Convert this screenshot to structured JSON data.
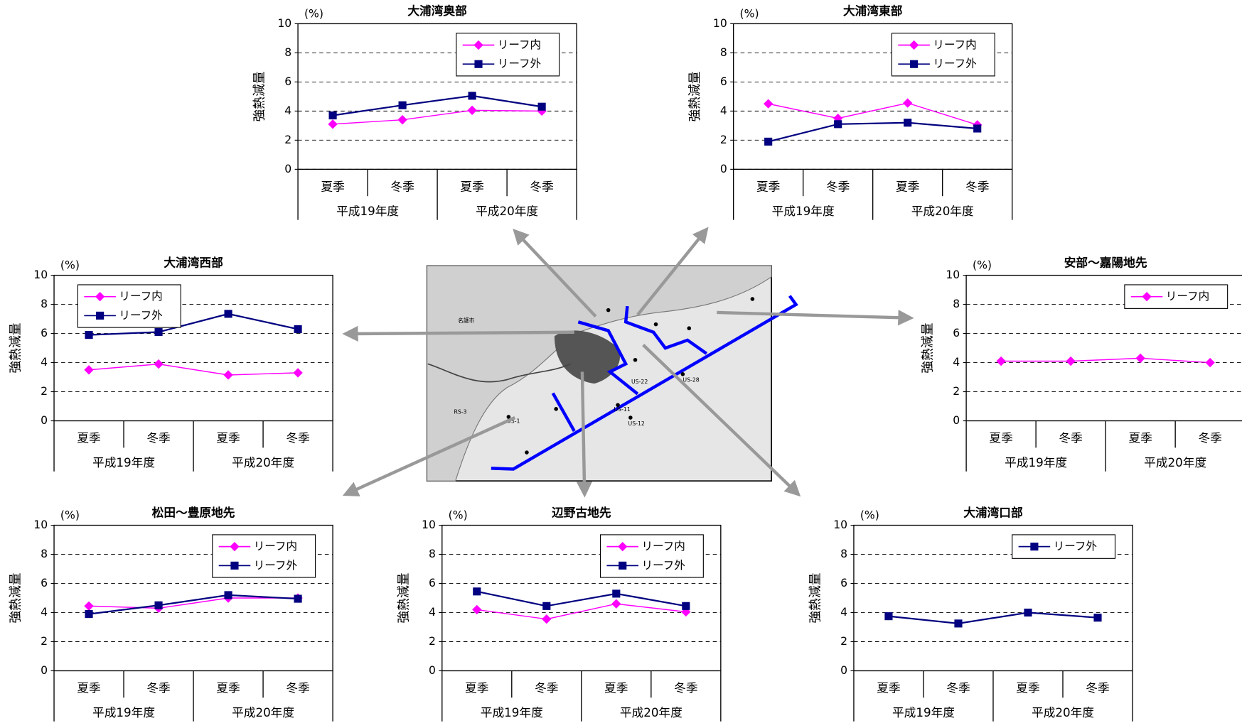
{
  "chart_data": [
    {
      "type": "line",
      "title": "大浦湾奥部",
      "y_label": "強熱減量",
      "y_unit": "(%)",
      "categories": [
        "夏季",
        "冬季",
        "夏季",
        "冬季"
      ],
      "groups": [
        "平成19年度",
        "平成20年度"
      ],
      "ylim": [
        0,
        10
      ],
      "yticks": [
        0,
        2,
        4,
        6,
        8,
        10
      ],
      "grid": true,
      "legend": "upper right",
      "series": [
        {
          "name": "リーフ内",
          "color": "#ff00ff",
          "marker": "diamond",
          "values": [
            3.1,
            3.4,
            4.05,
            4.0
          ]
        },
        {
          "name": "リーフ外",
          "color": "#000080",
          "marker": "square",
          "values": [
            3.7,
            4.4,
            5.05,
            4.3
          ]
        }
      ]
    },
    {
      "type": "line",
      "title": "大浦湾東部",
      "y_label": "強熱減量",
      "y_unit": "(%)",
      "categories": [
        "夏季",
        "冬季",
        "夏季",
        "冬季"
      ],
      "groups": [
        "平成19年度",
        "平成20年度"
      ],
      "ylim": [
        0,
        10
      ],
      "yticks": [
        0,
        2,
        4,
        6,
        8,
        10
      ],
      "grid": true,
      "legend": "upper right",
      "series": [
        {
          "name": "リーフ内",
          "color": "#ff00ff",
          "marker": "diamond",
          "values": [
            4.5,
            3.5,
            4.55,
            3.05
          ]
        },
        {
          "name": "リーフ外",
          "color": "#000080",
          "marker": "square",
          "values": [
            1.9,
            3.1,
            3.2,
            2.8
          ]
        }
      ]
    },
    {
      "type": "line",
      "title": "大浦湾西部",
      "y_label": "強熱減量",
      "y_unit": "(%)",
      "categories": [
        "夏季",
        "冬季",
        "夏季",
        "冬季"
      ],
      "groups": [
        "平成19年度",
        "平成20年度"
      ],
      "ylim": [
        0,
        10
      ],
      "yticks": [
        0,
        2,
        4,
        6,
        8,
        10
      ],
      "grid": true,
      "legend": "upper left",
      "series": [
        {
          "name": "リーフ内",
          "color": "#ff00ff",
          "marker": "diamond",
          "values": [
            3.5,
            3.9,
            3.15,
            3.3
          ]
        },
        {
          "name": "リーフ外",
          "color": "#000080",
          "marker": "square",
          "values": [
            5.9,
            6.1,
            7.35,
            6.3
          ]
        }
      ]
    },
    {
      "type": "line",
      "title": "安部～嘉陽地先",
      "y_label": "強熱減量",
      "y_unit": "(%)",
      "categories": [
        "夏季",
        "冬季",
        "夏季",
        "冬季"
      ],
      "groups": [
        "平成19年度",
        "平成20年度"
      ],
      "ylim": [
        0,
        10
      ],
      "yticks": [
        0,
        2,
        4,
        6,
        8,
        10
      ],
      "grid": true,
      "legend": "upper right",
      "series": [
        {
          "name": "リーフ内",
          "color": "#ff00ff",
          "marker": "diamond",
          "values": [
            4.1,
            4.1,
            4.3,
            4.0
          ]
        }
      ]
    },
    {
      "type": "line",
      "title": "松田～豊原地先",
      "y_label": "強熱減量",
      "y_unit": "(%)",
      "categories": [
        "夏季",
        "冬季",
        "夏季",
        "冬季"
      ],
      "groups": [
        "平成19年度",
        "平成20年度"
      ],
      "ylim": [
        0,
        10
      ],
      "yticks": [
        0,
        2,
        4,
        6,
        8,
        10
      ],
      "grid": true,
      "legend": "upper right",
      "series": [
        {
          "name": "リーフ内",
          "color": "#ff00ff",
          "marker": "diamond",
          "values": [
            4.45,
            4.3,
            5.0,
            5.0
          ]
        },
        {
          "name": "リーフ外",
          "color": "#000080",
          "marker": "square",
          "values": [
            3.9,
            4.5,
            5.2,
            4.95
          ]
        }
      ]
    },
    {
      "type": "line",
      "title": "辺野古地先",
      "y_label": "強熱減量",
      "y_unit": "(%)",
      "categories": [
        "夏季",
        "冬季",
        "夏季",
        "冬季"
      ],
      "groups": [
        "平成19年度",
        "平成20年度"
      ],
      "ylim": [
        0,
        10
      ],
      "yticks": [
        0,
        2,
        4,
        6,
        8,
        10
      ],
      "grid": true,
      "legend": "upper right",
      "series": [
        {
          "name": "リーフ内",
          "color": "#ff00ff",
          "marker": "diamond",
          "values": [
            4.2,
            3.55,
            4.6,
            4.05
          ]
        },
        {
          "name": "リーフ外",
          "color": "#000080",
          "marker": "square",
          "values": [
            5.45,
            4.45,
            5.3,
            4.45
          ]
        }
      ]
    },
    {
      "type": "line",
      "title": "大浦湾口部",
      "y_label": "強熱減量",
      "y_unit": "(%)",
      "categories": [
        "夏季",
        "冬季",
        "夏季",
        "冬季"
      ],
      "groups": [
        "平成19年度",
        "平成20年度"
      ],
      "ylim": [
        0,
        10
      ],
      "yticks": [
        0,
        2,
        4,
        6,
        8,
        10
      ],
      "grid": true,
      "legend": "upper right",
      "series": [
        {
          "name": "リーフ外",
          "color": "#000080",
          "marker": "square",
          "values": [
            3.75,
            3.25,
            4.0,
            3.65
          ]
        }
      ]
    }
  ],
  "map": {
    "labels": [
      "名護市",
      "US-1",
      "US-11",
      "US-12",
      "US-22",
      "US-28",
      "RS-3"
    ]
  }
}
